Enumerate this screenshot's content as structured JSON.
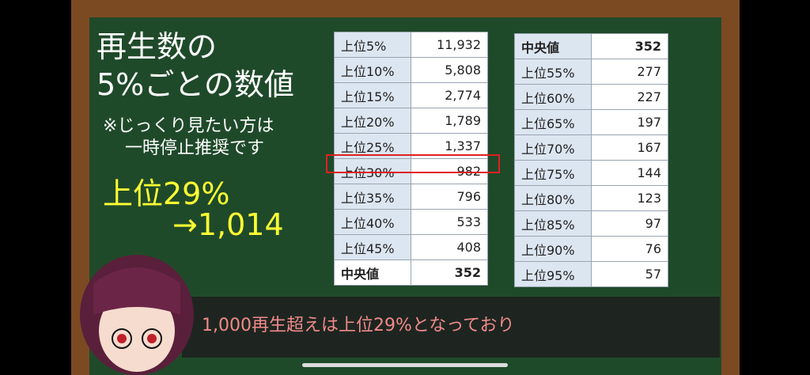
{
  "board": {
    "title": [
      "再生数の",
      "5%ごとの数値"
    ],
    "note": [
      "※じっくり見たい方は",
      "一時停止推奨です"
    ],
    "highlight": {
      "label": "上位29%",
      "value": "→1,014"
    }
  },
  "tables": [
    {
      "rows": [
        [
          "上位5%",
          "11,932"
        ],
        [
          "上位10%",
          "5,808"
        ],
        [
          "上位15%",
          "2,774"
        ],
        [
          "上位20%",
          "1,789"
        ],
        [
          "上位25%",
          "1,337"
        ],
        [
          "上位30%",
          "982"
        ],
        [
          "上位35%",
          "796"
        ],
        [
          "上位40%",
          "533"
        ],
        [
          "上位45%",
          "408"
        ],
        [
          "中央値",
          "352"
        ]
      ]
    },
    {
      "rows": [
        [
          "中央値",
          "352"
        ],
        [
          "上位55%",
          "277"
        ],
        [
          "上位60%",
          "227"
        ],
        [
          "上位65%",
          "197"
        ],
        [
          "上位70%",
          "167"
        ],
        [
          "上位75%",
          "144"
        ],
        [
          "上位80%",
          "123"
        ],
        [
          "上位85%",
          "97"
        ],
        [
          "上位90%",
          "76"
        ],
        [
          "上位95%",
          "57"
        ]
      ]
    }
  ],
  "subtitle": "1,000再生超えは上位29%となっており"
}
